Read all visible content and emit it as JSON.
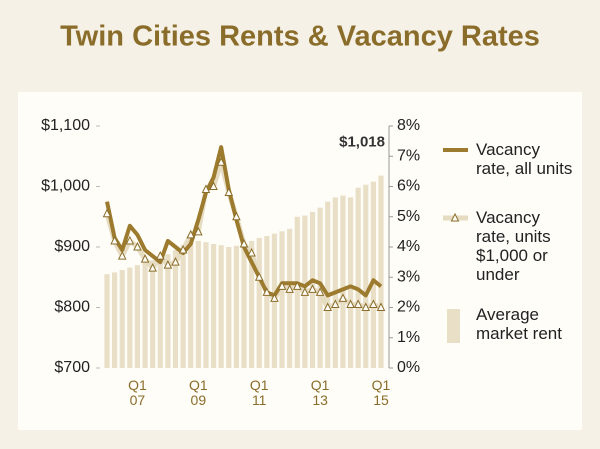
{
  "chart_data": {
    "type": "combo",
    "title": "Twin Cities Rents & Vacancy Rates",
    "categories": [
      null,
      null,
      null,
      null,
      "Q1 07",
      null,
      null,
      null,
      null,
      null,
      null,
      null,
      "Q1 09",
      null,
      null,
      null,
      null,
      null,
      null,
      null,
      "Q1 11",
      null,
      null,
      null,
      null,
      null,
      null,
      null,
      "Q1 13",
      null,
      null,
      null,
      null,
      null,
      null,
      null,
      "Q1 15"
    ],
    "series": [
      {
        "name": "Vacancy rate, all units",
        "type": "line",
        "axis": "y2",
        "color": "#9c7a2e",
        "values": [
          5.5,
          4.3,
          3.9,
          4.7,
          4.4,
          3.9,
          3.7,
          3.5,
          4.2,
          4.0,
          3.8,
          4.1,
          4.9,
          5.8,
          6.3,
          7.3,
          5.9,
          4.9,
          4.0,
          3.5,
          3.0,
          2.5,
          2.4,
          2.8,
          2.8,
          2.8,
          2.7,
          2.9,
          2.8,
          2.4,
          2.5,
          2.6,
          2.7,
          2.6,
          2.4,
          2.9,
          2.7
        ]
      },
      {
        "name": "Vacancy rate, units $1,000 or under",
        "type": "line",
        "axis": "y2",
        "color": "#e6dcc2",
        "marker": "triangle",
        "marker_color": "#8a6d2a",
        "values": [
          5.1,
          4.2,
          3.7,
          4.2,
          4.0,
          3.6,
          3.3,
          3.7,
          3.4,
          3.5,
          3.9,
          4.4,
          4.5,
          5.9,
          6.0,
          6.8,
          5.8,
          5.0,
          4.1,
          3.8,
          3.0,
          2.5,
          2.3,
          2.7,
          2.6,
          2.7,
          2.5,
          2.6,
          2.5,
          2.0,
          2.1,
          2.3,
          2.1,
          2.1,
          2.0,
          2.1,
          2.0
        ]
      },
      {
        "name": "Average market rent",
        "type": "bar",
        "axis": "y",
        "color": "#e9dfc6",
        "values": [
          855,
          858,
          862,
          866,
          870,
          874,
          878,
          883,
          888,
          895,
          903,
          908,
          910,
          908,
          905,
          903,
          900,
          902,
          905,
          910,
          915,
          918,
          922,
          926,
          930,
          950,
          952,
          958,
          965,
          975,
          982,
          985,
          982,
          998,
          1003,
          1008,
          1018
        ],
        "value_labels": [
          null,
          null,
          null,
          null,
          null,
          null,
          null,
          null,
          null,
          null,
          null,
          null,
          null,
          null,
          null,
          null,
          null,
          null,
          null,
          null,
          null,
          null,
          null,
          null,
          null,
          null,
          null,
          null,
          null,
          null,
          null,
          null,
          null,
          null,
          null,
          null,
          "$1,018"
        ]
      }
    ],
    "ylim": [
      700,
      1100
    ],
    "yticks": [
      {
        "value": 700,
        "label": "$700"
      },
      {
        "value": 800,
        "label": "$800"
      },
      {
        "value": 900,
        "label": "$900"
      },
      {
        "value": 1000,
        "label": "$1,000"
      },
      {
        "value": 1100,
        "label": "$1,100"
      }
    ],
    "y2lim": [
      0,
      8
    ],
    "y2ticks": [
      {
        "value": 0,
        "label": "0%"
      },
      {
        "value": 1,
        "label": "1%"
      },
      {
        "value": 2,
        "label": "2%"
      },
      {
        "value": 3,
        "label": "3%"
      },
      {
        "value": 4,
        "label": "4%"
      },
      {
        "value": 5,
        "label": "5%"
      },
      {
        "value": 6,
        "label": "6%"
      },
      {
        "value": 7,
        "label": "7%"
      },
      {
        "value": 8,
        "label": "8%"
      }
    ],
    "legend": "right"
  }
}
